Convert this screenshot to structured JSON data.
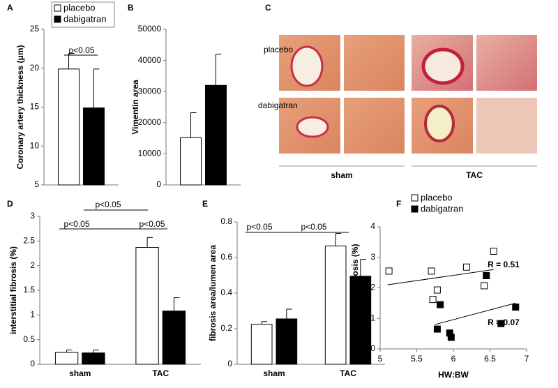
{
  "chart_data": [
    {
      "panel": "A",
      "type": "bar",
      "ylabel": "Coronary artery thickness (μm)",
      "ylim": [
        5,
        25
      ],
      "yticks": [
        5,
        10,
        15,
        20,
        25
      ],
      "legend": "top",
      "series": [
        {
          "name": "placebo",
          "color": "#ffffff",
          "values": [
            19.9
          ],
          "errors": [
            2
          ]
        },
        {
          "name": "dabigatran",
          "color": "#000000",
          "values": [
            14.9
          ],
          "errors": [
            5
          ]
        }
      ],
      "annotations": [
        "p<0.05"
      ]
    },
    {
      "panel": "B",
      "type": "bar",
      "ylabel": "Vimentin area",
      "ylim": [
        0,
        50000
      ],
      "yticks": [
        0,
        10000,
        20000,
        30000,
        40000,
        50000
      ],
      "series": [
        {
          "color": "#ffffff",
          "values": [
            15200
          ],
          "errors": [
            8000
          ]
        },
        {
          "color": "#000000",
          "values": [
            32000
          ],
          "errors": [
            10000
          ]
        }
      ]
    },
    {
      "panel": "D",
      "type": "bar",
      "ylabel": "interstitial fibrosis (%)",
      "ylim": [
        0,
        3
      ],
      "yticks": [
        0,
        0.5,
        1,
        1.5,
        2,
        2.5,
        3
      ],
      "categories": [
        "sham",
        "TAC"
      ],
      "series": [
        {
          "color": "#ffffff",
          "values": [
            0.24,
            2.37
          ],
          "errors": [
            0.05,
            0.2
          ]
        },
        {
          "color": "#000000",
          "values": [
            0.23,
            1.08
          ],
          "errors": [
            0.06,
            0.27
          ]
        }
      ],
      "annotations": [
        "p<0.05",
        "p<0.05",
        "p<0.05"
      ]
    },
    {
      "panel": "E",
      "type": "bar",
      "ylabel": "fibrosis area/lumen area",
      "ylim": [
        0,
        0.8
      ],
      "yticks": [
        0,
        0.2,
        0.4,
        0.6,
        0.8
      ],
      "categories": [
        "sham",
        "TAC"
      ],
      "series": [
        {
          "color": "#ffffff",
          "values": [
            0.225,
            0.665
          ],
          "errors": [
            0.015,
            0.07
          ]
        },
        {
          "color": "#000000",
          "values": [
            0.255,
            0.495
          ],
          "errors": [
            0.055,
            0.095
          ]
        }
      ],
      "annotations": [
        "p<0.05",
        "p<0.05"
      ]
    },
    {
      "panel": "F",
      "type": "scatter",
      "xlabel": "HW:BW",
      "ylabel": "interstitial fibrosis (%)",
      "xlim": [
        5,
        7
      ],
      "xticks": [
        5,
        5.5,
        6,
        6.5,
        7
      ],
      "ylim": [
        0,
        4
      ],
      "yticks": [
        0,
        1,
        2,
        3,
        4
      ],
      "legend": "top",
      "series": [
        {
          "name": "placebo",
          "color": "#ffffff",
          "x": [
            5.12,
            5.7,
            5.78,
            6.18,
            6.42,
            6.55,
            5.72
          ],
          "y": [
            2.55,
            2.55,
            1.93,
            2.68,
            2.07,
            3.2,
            1.62
          ]
        },
        {
          "name": "dabigatran",
          "color": "#000000",
          "x": [
            5.78,
            5.82,
            5.95,
            5.97,
            6.45,
            6.65,
            6.85
          ],
          "y": [
            0.65,
            1.45,
            0.52,
            0.38,
            2.4,
            0.83,
            1.37
          ]
        }
      ],
      "trendlines": [
        {
          "x": [
            5.1,
            6.55
          ],
          "y": [
            2.1,
            2.6
          ]
        },
        {
          "x": [
            5.75,
            6.85
          ],
          "y": [
            0.8,
            1.5
          ]
        }
      ],
      "annotations": [
        "R = 0.51",
        "R = 0.07"
      ]
    }
  ],
  "image_panel": {
    "panel": "C",
    "rows": [
      "placebo",
      "dabigatran"
    ],
    "groups": [
      "sham",
      "TAC"
    ]
  }
}
